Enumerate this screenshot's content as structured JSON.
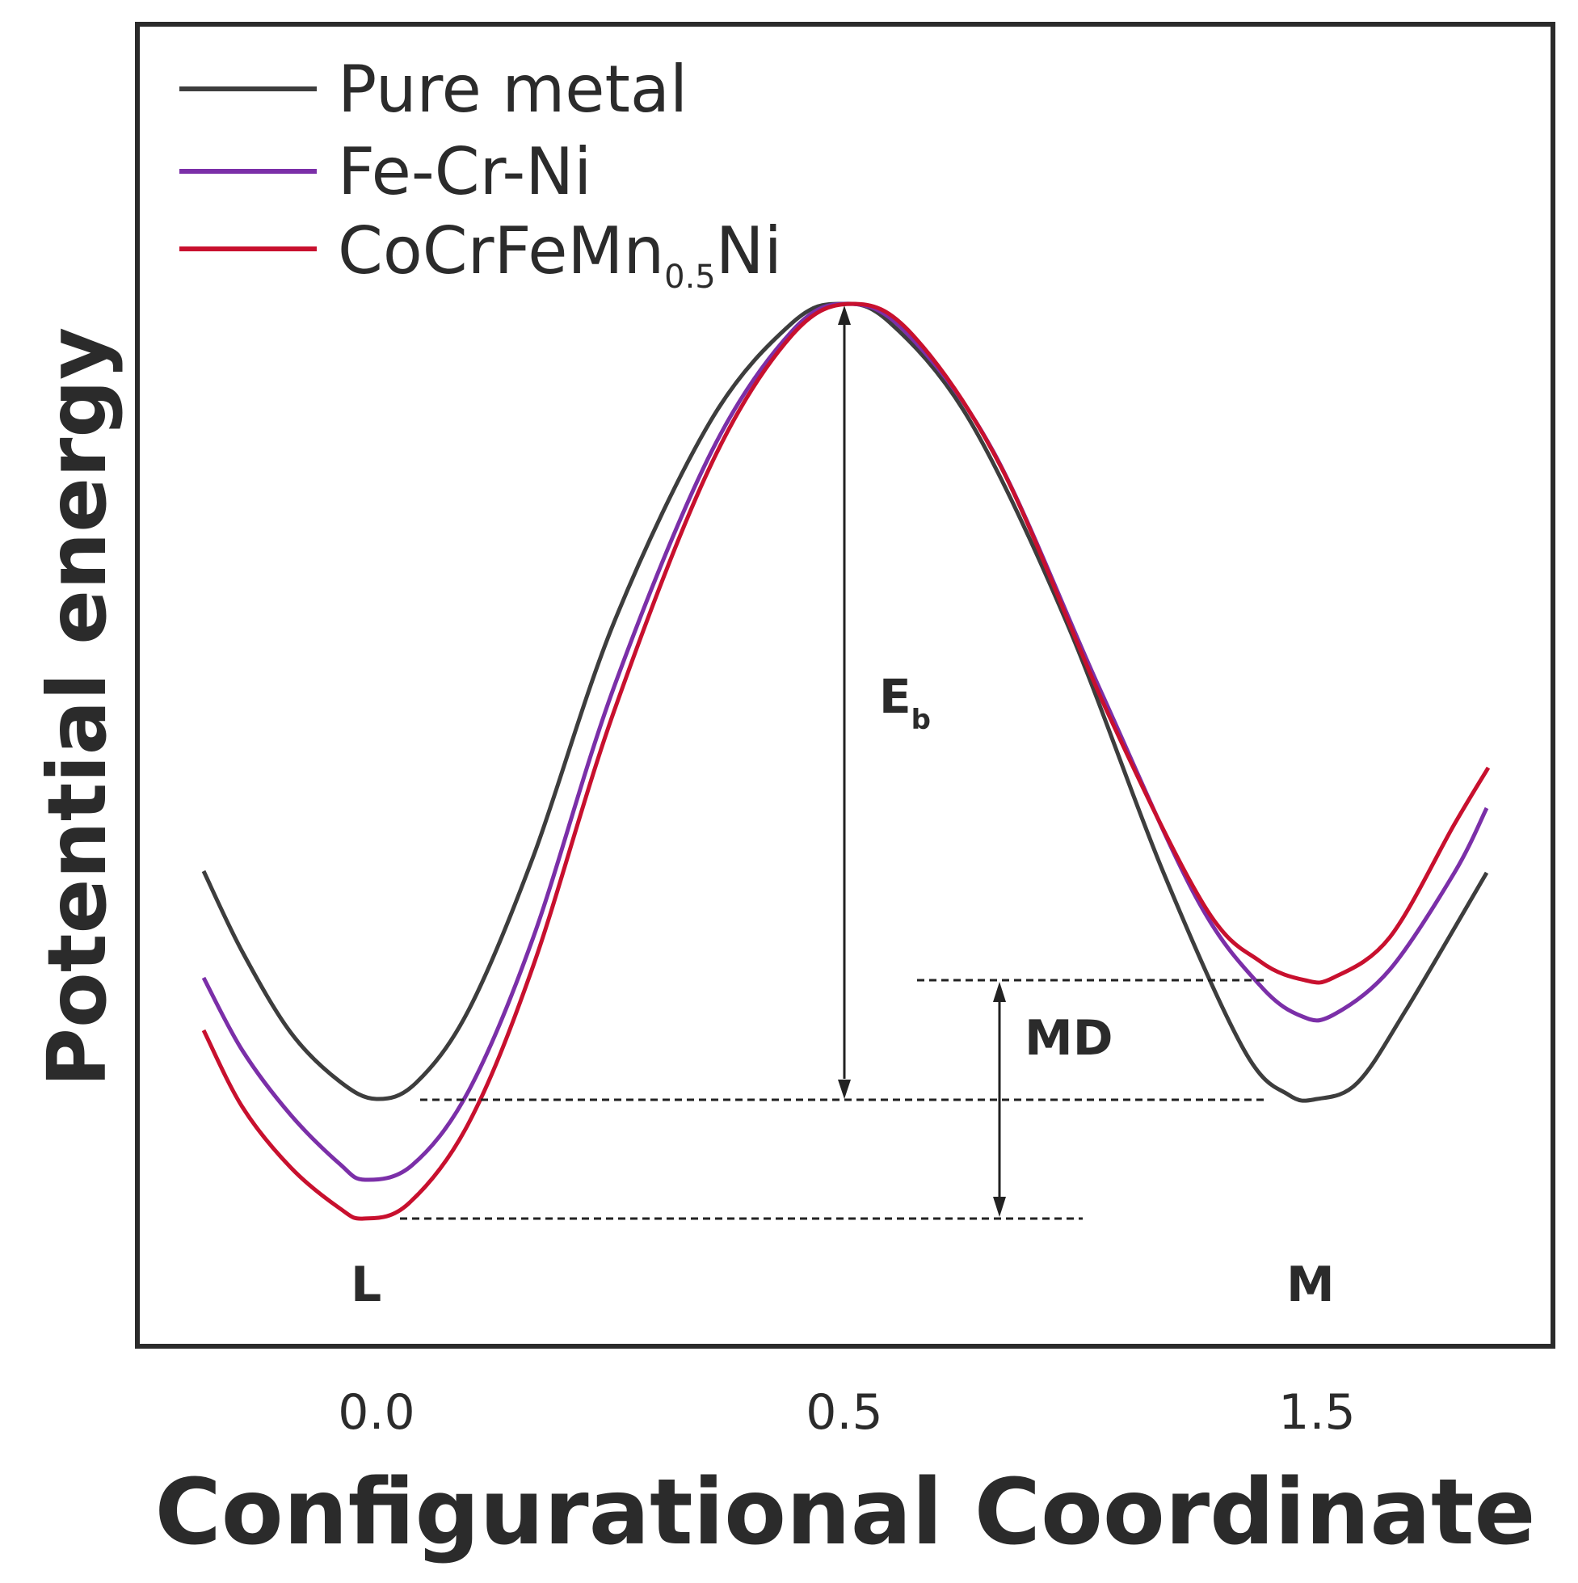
{
  "chart_data": {
    "type": "line",
    "xlabel": "Configurational Coordinate",
    "ylabel": "Potential energy",
    "x_ticks": [
      "0.0",
      "0.5",
      "1.5"
    ],
    "grid": false,
    "legend_position": "top-left",
    "series": [
      {
        "name": "Pure metal",
        "color": "#3d3d3d"
      },
      {
        "name": "Fe-Cr-Ni",
        "color": "#7b2fa8"
      },
      {
        "name": "CoCrFeMn",
        "name_sub": "0.5",
        "name_suffix": "Ni",
        "color": "#c8102e"
      }
    ],
    "annotations": {
      "barrier": {
        "main": "E",
        "sub": "b"
      },
      "md": "MD",
      "left_min": "L",
      "right_min": "M"
    }
  }
}
